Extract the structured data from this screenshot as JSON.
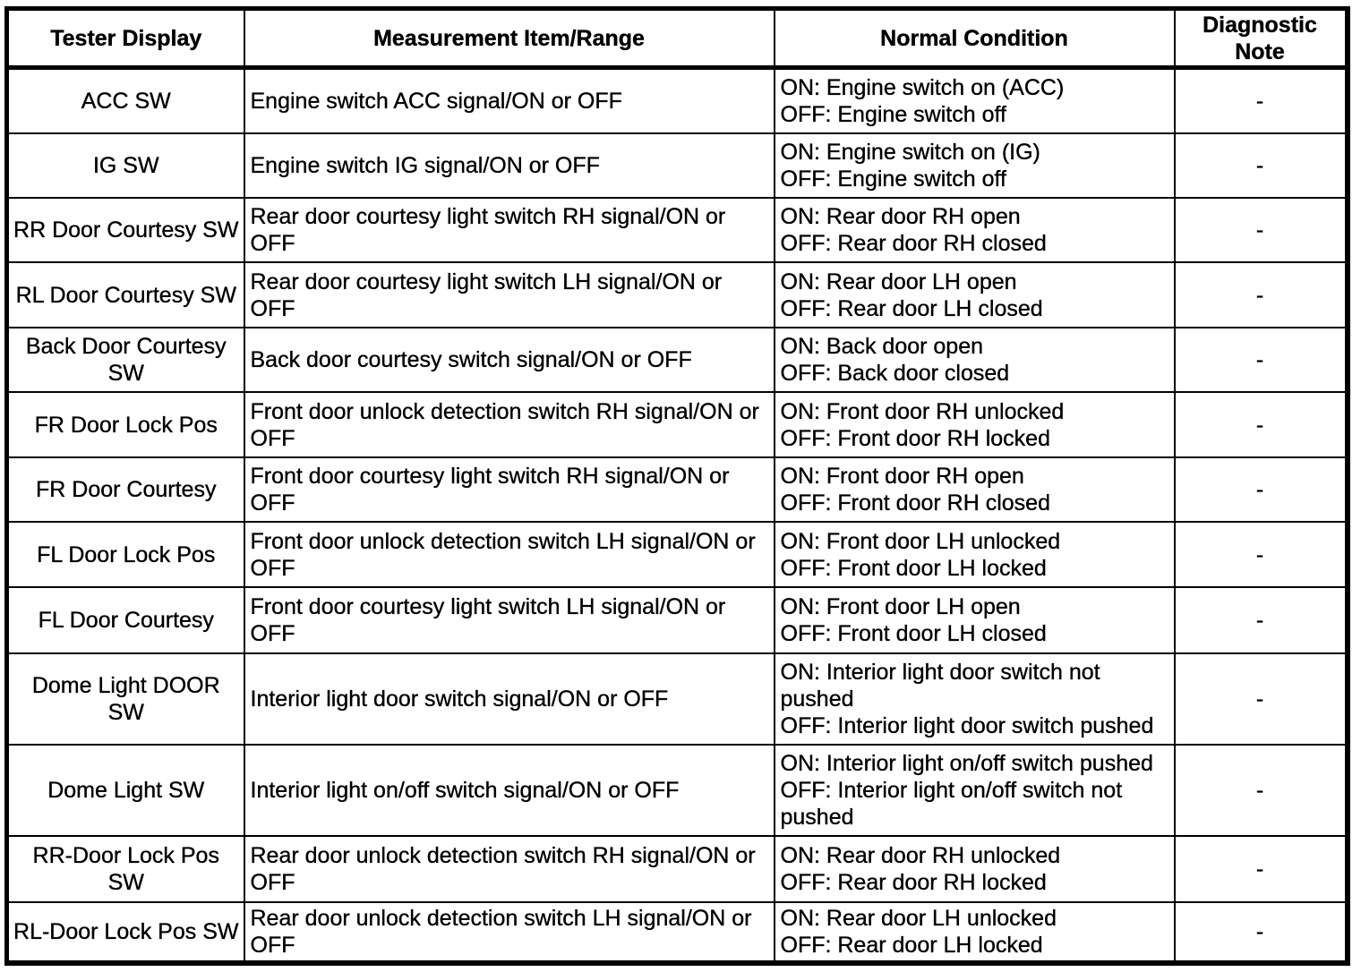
{
  "table": {
    "columns": [
      {
        "key": "tester",
        "label": "Tester Display"
      },
      {
        "key": "item",
        "label": "Measurement Item/Range"
      },
      {
        "key": "condition",
        "label": "Normal Condition"
      },
      {
        "key": "note",
        "label": "Diagnostic\nNote"
      }
    ],
    "rows": [
      {
        "tester": "ACC SW",
        "item": "Engine switch ACC signal/ON or OFF",
        "condition": "ON: Engine switch on (ACC)\nOFF: Engine switch off",
        "note": "-"
      },
      {
        "tester": "IG SW",
        "item": "Engine switch IG signal/ON or OFF",
        "condition": "ON: Engine switch on (IG)\nOFF: Engine switch off",
        "note": "-"
      },
      {
        "tester": "RR Door Courtesy SW",
        "item": "Rear door courtesy light switch RH signal/ON or\nOFF",
        "condition": "ON: Rear door RH open\nOFF: Rear door RH closed",
        "note": "-"
      },
      {
        "tester": "RL Door Courtesy SW",
        "item": "Rear door courtesy light switch LH signal/ON or\nOFF",
        "condition": "ON: Rear door LH open\nOFF: Rear door LH closed",
        "note": "-"
      },
      {
        "tester": "Back Door Courtesy\nSW",
        "item": "Back door courtesy switch signal/ON or OFF",
        "condition": "ON: Back door open\nOFF: Back door closed",
        "note": "-"
      },
      {
        "tester": "FR Door Lock Pos",
        "item": "Front door unlock detection switch RH signal/ON or\nOFF",
        "condition": "ON: Front door RH unlocked\nOFF: Front door RH locked",
        "note": "-"
      },
      {
        "tester": "FR Door Courtesy",
        "item": "Front door courtesy light switch RH signal/ON or\nOFF",
        "condition": "ON: Front door RH open\nOFF: Front door RH closed",
        "note": "-"
      },
      {
        "tester": "FL Door Lock Pos",
        "item": "Front door unlock detection switch LH signal/ON or\nOFF",
        "condition": "ON: Front door LH unlocked\nOFF: Front door LH locked",
        "note": "-"
      },
      {
        "tester": "FL Door Courtesy",
        "item": "Front door courtesy light switch LH signal/ON or\nOFF",
        "condition": "ON: Front door LH open\nOFF: Front door LH closed",
        "note": "-"
      },
      {
        "tester": "Dome Light DOOR\nSW",
        "item": "Interior light door switch signal/ON or OFF",
        "condition": "ON: Interior light door switch not\npushed\nOFF: Interior light door switch pushed",
        "note": "-"
      },
      {
        "tester": "Dome Light SW",
        "item": "Interior light on/off switch signal/ON or OFF",
        "condition": "ON: Interior light on/off switch pushed\nOFF: Interior light on/off switch not\npushed",
        "note": "-"
      },
      {
        "tester": "RR-Door Lock Pos\nSW",
        "item": "Rear door unlock detection switch RH signal/ON or\nOFF",
        "condition": "ON: Rear door RH unlocked\nOFF: Rear door RH locked",
        "note": "-"
      },
      {
        "tester": "RL-Door Lock Pos SW",
        "item": "Rear door unlock detection switch LH signal/ON or\nOFF",
        "condition": "ON: Rear door LH unlocked\nOFF: Rear door LH locked",
        "note": "-"
      }
    ]
  }
}
